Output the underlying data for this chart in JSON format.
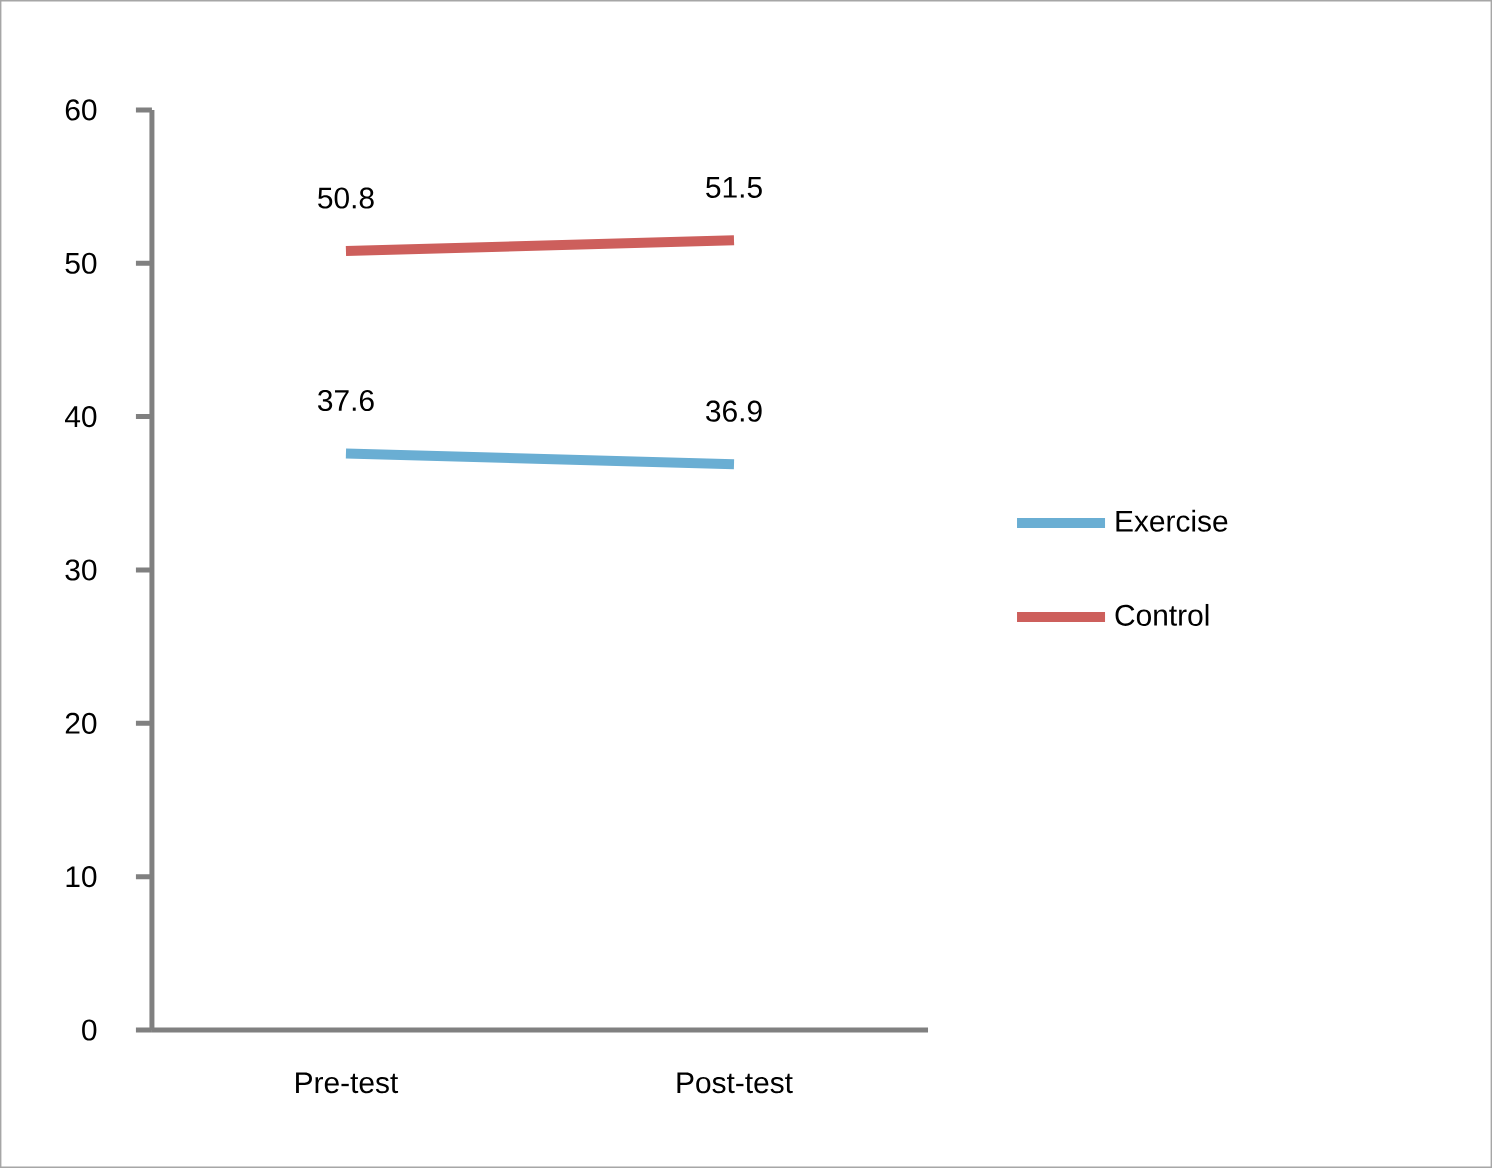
{
  "chart_data": {
    "type": "line",
    "categories": [
      "Pre-test",
      "Post-test"
    ],
    "series": [
      {
        "name": "Exercise",
        "color": "#6aaed3",
        "values": [
          37.6,
          36.9
        ]
      },
      {
        "name": "Control",
        "color": "#cd5f5c",
        "values": [
          50.8,
          51.5
        ]
      }
    ],
    "ylim": [
      0,
      60
    ],
    "yticks": [
      0,
      10,
      20,
      30,
      40,
      50,
      60
    ],
    "data_labels": true,
    "legend": "right",
    "grid": false,
    "marker": "none",
    "line_style": "solid"
  }
}
